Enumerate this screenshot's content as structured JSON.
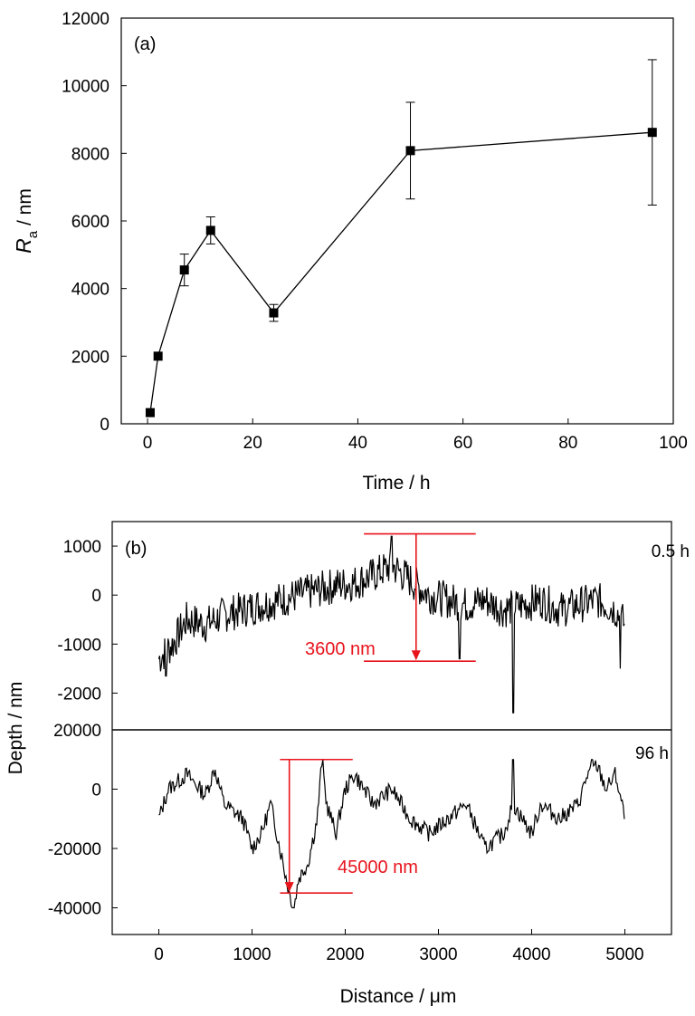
{
  "chart_data": [
    {
      "type": "line",
      "panel_label": "(a)",
      "xlabel": "Time / h",
      "ylabel_main": "R",
      "ylabel_sub": "a",
      "ylabel_unit": " / nm",
      "xlim": [
        -5,
        100
      ],
      "ylim": [
        0,
        12000
      ],
      "xticks": [
        0,
        20,
        40,
        60,
        80,
        100
      ],
      "yticks": [
        0,
        2000,
        4000,
        6000,
        8000,
        10000,
        12000
      ],
      "marker": "square",
      "series": [
        {
          "x": [
            0.5,
            2,
            7,
            12,
            24,
            50,
            96
          ],
          "y": [
            330,
            2000,
            4550,
            5720,
            3280,
            8080,
            8620
          ],
          "err_lower": [
            0,
            0,
            470,
            400,
            250,
            1430,
            2150
          ],
          "err_upper": [
            0,
            0,
            470,
            400,
            250,
            1430,
            2150
          ]
        }
      ],
      "grid": false
    },
    {
      "type": "line",
      "panel_label": "(b)",
      "xlabel": "Distance / μm",
      "ylabel": "Depth / nm",
      "xlim": [
        -500,
        5500
      ],
      "xticks": [
        0,
        1000,
        2000,
        3000,
        4000,
        5000
      ],
      "grid": false,
      "subplots": [
        {
          "label": "0.5 h",
          "ylim": [
            -2750,
            1500
          ],
          "yticks": [
            -2000,
            -1000,
            0,
            1000
          ],
          "ytick_labels": [
            "-2000",
            "-1000",
            "0",
            "1000"
          ],
          "profile_anchors": [
            [
              0,
              -1300
            ],
            [
              150,
              -1000
            ],
            [
              300,
              -500
            ],
            [
              500,
              -600
            ],
            [
              700,
              -400
            ],
            [
              900,
              -300
            ],
            [
              1100,
              -200
            ],
            [
              1300,
              -100
            ],
            [
              1500,
              0
            ],
            [
              1700,
              100
            ],
            [
              1900,
              200
            ],
            [
              2100,
              250
            ],
            [
              2300,
              400
            ],
            [
              2500,
              600
            ],
            [
              2700,
              300
            ],
            [
              2900,
              0
            ],
            [
              3100,
              -100
            ],
            [
              3300,
              -200
            ],
            [
              3500,
              -100
            ],
            [
              3700,
              -300
            ],
            [
              3900,
              -200
            ],
            [
              4100,
              -100
            ],
            [
              4300,
              -300
            ],
            [
              4500,
              -200
            ],
            [
              4700,
              -100
            ],
            [
              4900,
              -300
            ],
            [
              5000,
              -600
            ]
          ],
          "profile_spikes": [
            [
              80,
              -1650
            ],
            [
              2500,
              1200
            ],
            [
              3230,
              -1300
            ],
            [
              3800,
              -2400
            ],
            [
              4950,
              -1500
            ]
          ],
          "annotation": {
            "text": "3600 nm",
            "top": 1250,
            "bottom": -1350,
            "x_start": 2200,
            "x_end": 3400,
            "arrow_x": 2760
          }
        },
        {
          "label": "96 h",
          "ylim": [
            -49000,
            20000
          ],
          "yticks": [
            -40000,
            -20000,
            0,
            20000
          ],
          "ytick_labels": [
            "-40000",
            "-20000",
            "0",
            "20000"
          ],
          "profile_anchors": [
            [
              0,
              -10000
            ],
            [
              100,
              0
            ],
            [
              300,
              5000
            ],
            [
              500,
              -2000
            ],
            [
              600,
              7000
            ],
            [
              700,
              -5000
            ],
            [
              900,
              -10000
            ],
            [
              1000,
              -20000
            ],
            [
              1100,
              -15000
            ],
            [
              1200,
              -5000
            ],
            [
              1300,
              -20000
            ],
            [
              1400,
              -35000
            ],
            [
              1450,
              -40000
            ],
            [
              1500,
              -30000
            ],
            [
              1600,
              -25000
            ],
            [
              1700,
              -10000
            ],
            [
              1750,
              10000
            ],
            [
              1800,
              -5000
            ],
            [
              1900,
              -15000
            ],
            [
              2000,
              0
            ],
            [
              2100,
              5000
            ],
            [
              2300,
              -5000
            ],
            [
              2500,
              0
            ],
            [
              2700,
              -10000
            ],
            [
              2900,
              -15000
            ],
            [
              3100,
              -10000
            ],
            [
              3300,
              -5000
            ],
            [
              3500,
              -20000
            ],
            [
              3700,
              -15000
            ],
            [
              3800,
              -5000
            ],
            [
              3900,
              -10000
            ],
            [
              4000,
              -15000
            ],
            [
              4100,
              -5000
            ],
            [
              4300,
              -10000
            ],
            [
              4500,
              -5000
            ],
            [
              4600,
              5000
            ],
            [
              4700,
              8000
            ],
            [
              4800,
              0
            ],
            [
              4900,
              5000
            ],
            [
              5000,
              -10000
            ]
          ],
          "profile_spikes": [
            [
              1450,
              -40000
            ],
            [
              1760,
              10000
            ],
            [
              3800,
              10000
            ],
            [
              4650,
              10000
            ]
          ],
          "annotation": {
            "text": "45000 nm",
            "top": 10000,
            "bottom": -35000,
            "x_start": 1300,
            "x_end": 2080,
            "arrow_x": 1400
          }
        }
      ]
    }
  ],
  "colors": {
    "annotation": "#e8141c",
    "series": "#000000"
  }
}
